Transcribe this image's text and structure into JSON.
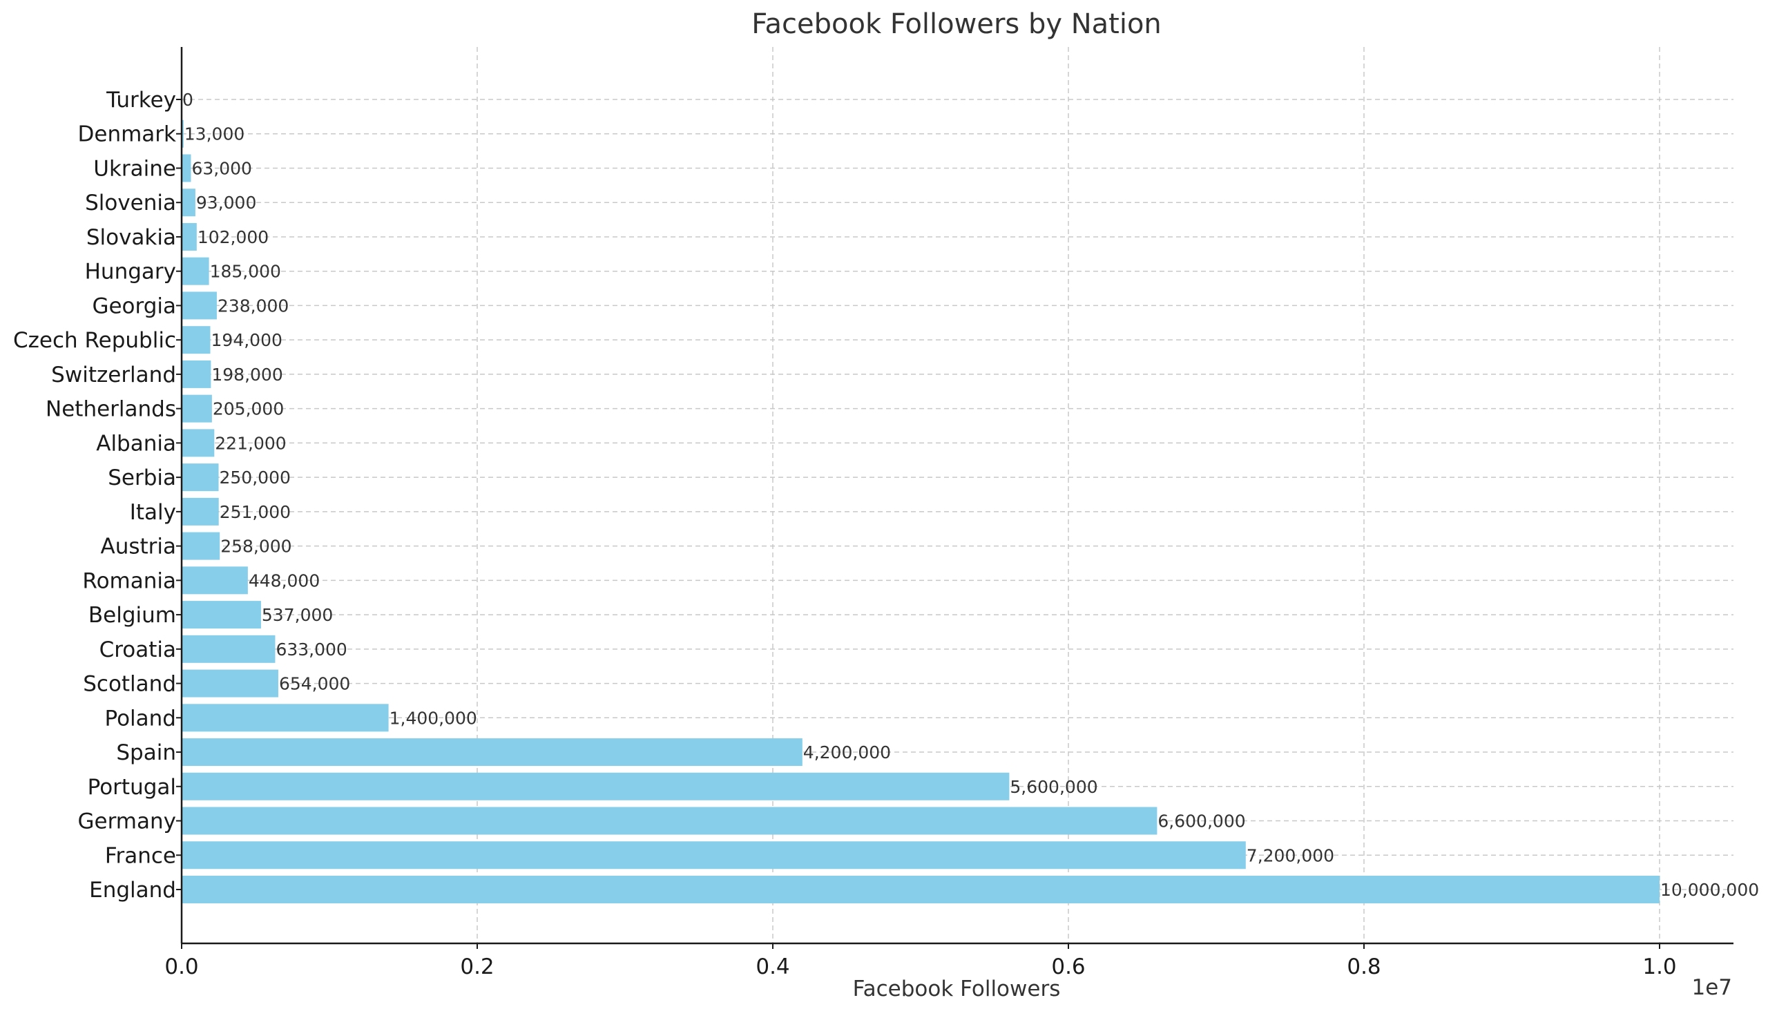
{
  "chart_data": {
    "type": "bar",
    "orientation": "horizontal",
    "title": "Facebook Followers by Nation",
    "xlabel": "Facebook Followers",
    "ylabel": "",
    "x_multiplier_label": "1e7",
    "xlim": [
      0,
      10500000
    ],
    "x_ticks": [
      0,
      2000000,
      4000000,
      6000000,
      8000000,
      10000000
    ],
    "x_tick_labels": [
      "0.0",
      "0.2",
      "0.4",
      "0.6",
      "0.8",
      "1.0"
    ],
    "grid": true,
    "bar_color": "#87CEEB",
    "categories": [
      "England",
      "France",
      "Germany",
      "Portugal",
      "Spain",
      "Poland",
      "Scotland",
      "Croatia",
      "Belgium",
      "Romania",
      "Austria",
      "Italy",
      "Serbia",
      "Albania",
      "Netherlands",
      "Switzerland",
      "Czech Republic",
      "Georgia",
      "Hungary",
      "Slovakia",
      "Slovenia",
      "Ukraine",
      "Denmark",
      "Turkey"
    ],
    "values": [
      10000000,
      7200000,
      6600000,
      5600000,
      4200000,
      1400000,
      654000,
      633000,
      537000,
      448000,
      258000,
      251000,
      250000,
      221000,
      205000,
      198000,
      194000,
      238000,
      185000,
      102000,
      93000,
      63000,
      13000,
      0
    ],
    "value_labels": [
      "10,000,000",
      "7,200,000",
      "6,600,000",
      "5,600,000",
      "4,200,000",
      "1,400,000",
      "654,000",
      "633,000",
      "537,000",
      "448,000",
      "258,000",
      "251,000",
      "250,000",
      "221,000",
      "205,000",
      "198,000",
      "194,000",
      "238,000",
      "185,000",
      "102,000",
      "93,000",
      "63,000",
      "13,000",
      "0"
    ]
  }
}
